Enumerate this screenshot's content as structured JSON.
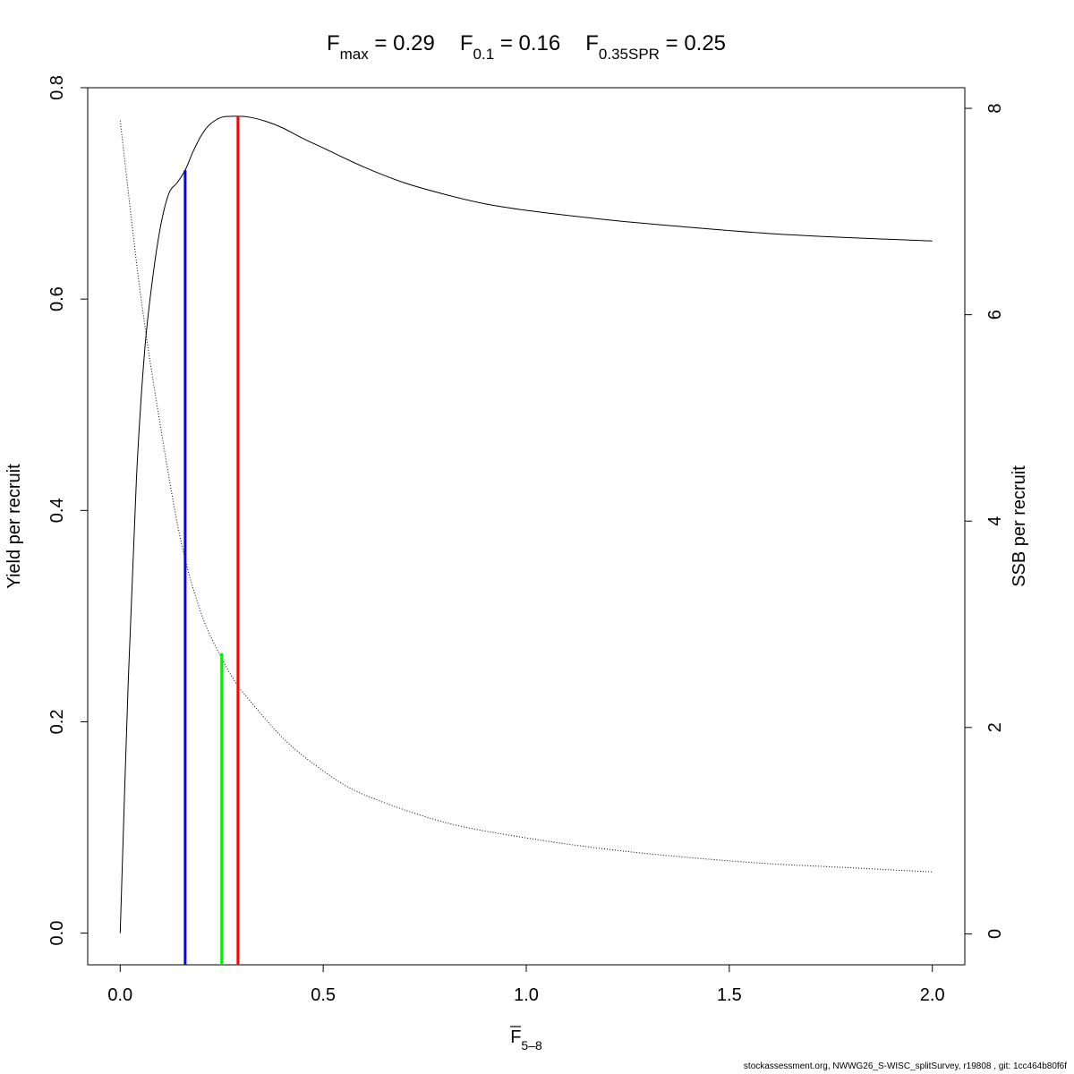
{
  "title": {
    "fmax": {
      "symbol": "F",
      "sub": "max",
      "eq": " = ",
      "value": "0.29"
    },
    "f01": {
      "symbol": "F",
      "sub": "0.1",
      "eq": " = ",
      "value": "0.16"
    },
    "f035": {
      "symbol": "F",
      "sub": "0.35SPR",
      "eq": " = ",
      "value": "0.25"
    }
  },
  "footer": "stockassessment.org, NWWG26_S-WISC_splitSurvey, r19808 , git: 1cc464b80f6f",
  "chart_data": {
    "type": "line",
    "xlabel": {
      "symbol": "F",
      "sub": "5–8"
    },
    "ylabel_left": "Yield per recruit",
    "ylabel_right": "SSB per recruit",
    "xlim": [
      -0.08,
      2.08
    ],
    "ylim_left": [
      -0.03,
      0.8
    ],
    "ylim_right": [
      -0.3,
      8.2
    ],
    "xticks": [
      "0.0",
      "0.5",
      "1.0",
      "1.5",
      "2.0"
    ],
    "yticks_left": [
      "0.0",
      "0.2",
      "0.4",
      "0.6",
      "0.8"
    ],
    "yticks_right": [
      "0",
      "2",
      "4",
      "6",
      "8"
    ],
    "grid": false,
    "series": [
      {
        "axis": "left",
        "style": "solid",
        "color": "#000000",
        "x": [
          0,
          0.02,
          0.04,
          0.06,
          0.08,
          0.1,
          0.12,
          0.14,
          0.16,
          0.18,
          0.2,
          0.22,
          0.25,
          0.29,
          0.32,
          0.36,
          0.4,
          0.45,
          0.5,
          0.6,
          0.7,
          0.8,
          0.9,
          1.0,
          1.2,
          1.4,
          1.6,
          1.8,
          2.0
        ],
        "values": [
          0.0,
          0.24,
          0.43,
          0.55,
          0.62,
          0.67,
          0.7,
          0.71,
          0.722,
          0.74,
          0.755,
          0.765,
          0.772,
          0.773,
          0.772,
          0.768,
          0.762,
          0.752,
          0.743,
          0.725,
          0.71,
          0.699,
          0.69,
          0.684,
          0.675,
          0.668,
          0.662,
          0.658,
          0.655
        ]
      },
      {
        "axis": "right",
        "style": "dotted",
        "color": "#000000",
        "x": [
          0,
          0.05,
          0.1,
          0.15,
          0.2,
          0.25,
          0.29,
          0.3,
          0.4,
          0.5,
          0.6,
          0.8,
          1.0,
          1.2,
          1.4,
          1.6,
          1.8,
          2.0
        ],
        "values": [
          7.88,
          6.2,
          4.9,
          3.8,
          3.1,
          2.67,
          2.4,
          2.35,
          1.9,
          1.58,
          1.35,
          1.08,
          0.93,
          0.82,
          0.74,
          0.68,
          0.64,
          0.6
        ]
      }
    ],
    "reference_lines": [
      {
        "name": "F0.1",
        "x": 0.16,
        "y_top": 0.722,
        "color": "#0000ff"
      },
      {
        "name": "F0.35SPR",
        "x": 0.25,
        "y_top": 0.265,
        "color": "#00ee00"
      },
      {
        "name": "Fmax",
        "x": 0.29,
        "y_top": 0.773,
        "color": "#ff0000"
      }
    ]
  }
}
